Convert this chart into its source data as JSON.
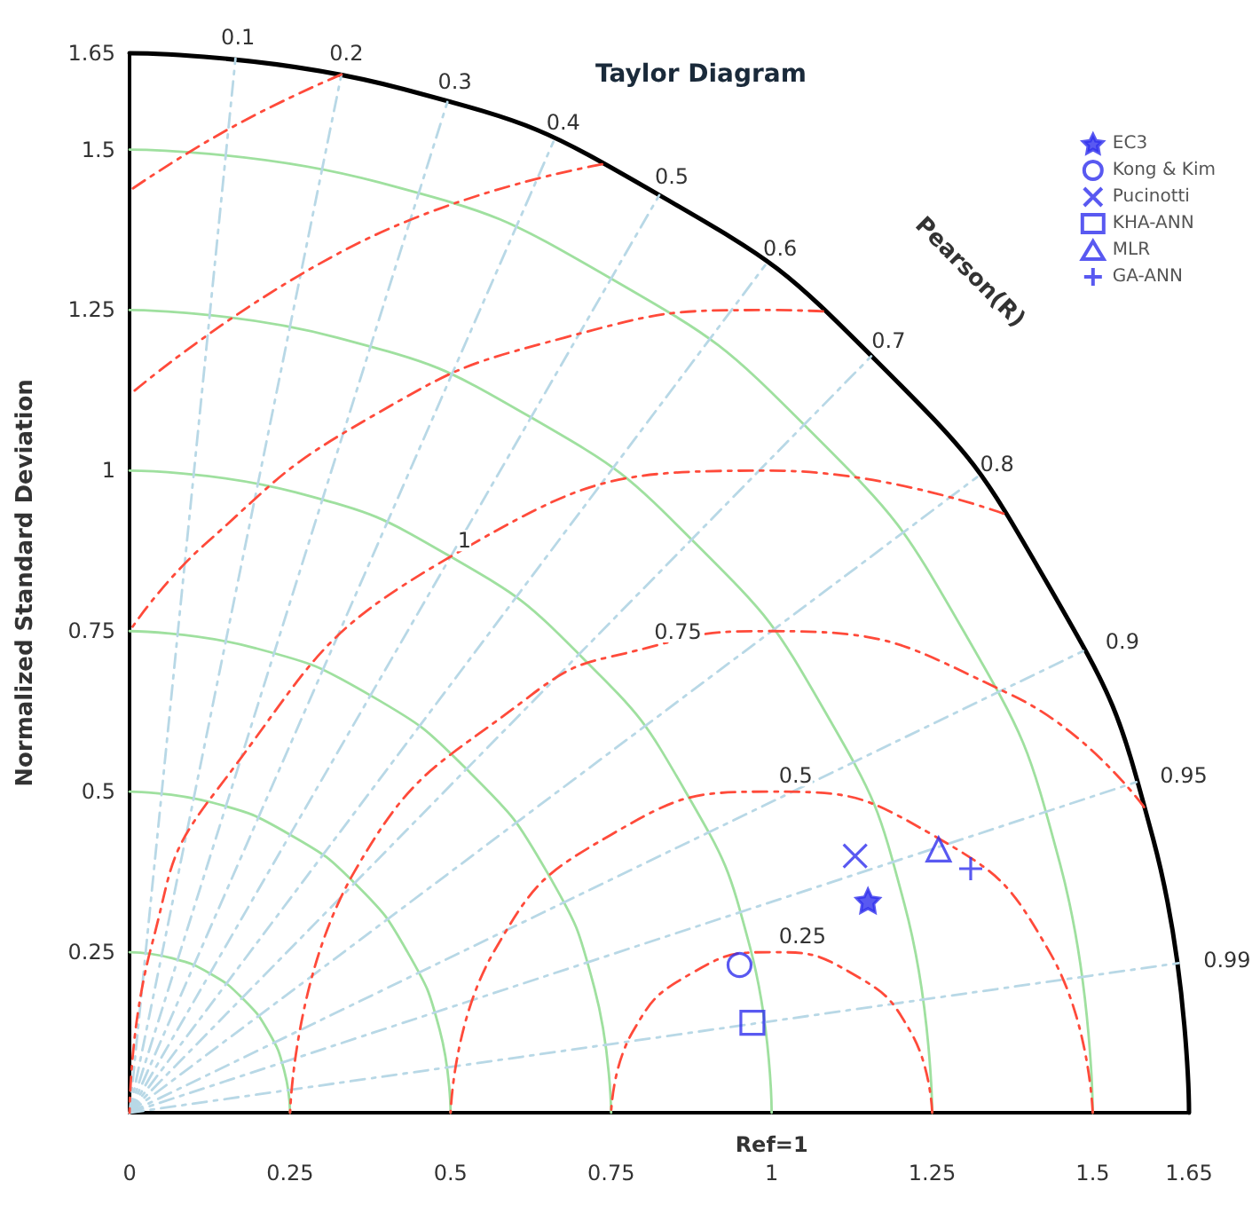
{
  "chart_data": {
    "type": "scatter",
    "title": "Taylor Diagram",
    "ylabel": "Normalized Standard Deviation",
    "xlim": [
      0,
      1.65
    ],
    "xticks": [
      0,
      0.25,
      0.5,
      0.75,
      1,
      1.25,
      1.5,
      1.65
    ],
    "ylim": [
      0,
      1.65
    ],
    "yticks": [
      0.25,
      0.5,
      0.75,
      1,
      1.25,
      1.5,
      1.65
    ],
    "legend": "top right",
    "annotations": [
      "Pearson(R)",
      {
        "text": "Ref=1",
        "x": 1,
        "y": 0
      },
      {
        "text": "0.1",
        "x": 0.165,
        "y": 1.642
      },
      {
        "text": "0.2",
        "x": 0.33,
        "y": 1.617
      },
      {
        "text": "0.3",
        "x": 0.495,
        "y": 1.574
      },
      {
        "text": "0.4",
        "x": 0.66,
        "y": 1.512
      },
      {
        "text": "0.5",
        "x": 0.825,
        "y": 1.429
      },
      {
        "text": "0.6",
        "x": 0.99,
        "y": 1.32
      },
      {
        "text": "0.7",
        "x": 1.155,
        "y": 1.178
      },
      {
        "text": "0.8",
        "x": 1.32,
        "y": 0.99
      },
      {
        "text": "0.9",
        "x": 1.485,
        "y": 0.719
      },
      {
        "text": "0.95",
        "x": 1.568,
        "y": 0.515
      },
      {
        "text": "0.99",
        "x": 1.634,
        "y": 0.233
      },
      {
        "text": "0.25",
        "x": 1,
        "y": 0.25
      },
      {
        "text": "0.5",
        "x": 1,
        "y": 0.5
      },
      {
        "text": "0.75",
        "x": 0.806,
        "y": 0.724
      },
      {
        "text": "1",
        "x": 0.5,
        "y": 0.866
      }
    ],
    "series": [
      {
        "type": "line",
        "color": "#9fe09f",
        "marker": "none",
        "line_style": "solid",
        "x": [
          0.25,
          0.241,
          0.217,
          0.177,
          0.125,
          0.065,
          0
        ],
        "values": [
          0,
          0.065,
          0.125,
          0.177,
          0.217,
          0.241,
          0.25
        ]
      },
      {
        "type": "line",
        "color": "#9fe09f",
        "marker": "none",
        "line_style": "solid",
        "x": [
          0.5,
          0.483,
          0.433,
          0.354,
          0.25,
          0.129,
          0
        ],
        "values": [
          0,
          0.129,
          0.25,
          0.354,
          0.433,
          0.483,
          0.5
        ]
      },
      {
        "type": "line",
        "color": "#9fe09f",
        "marker": "none",
        "line_style": "solid",
        "x": [
          0.75,
          0.724,
          0.65,
          0.53,
          0.375,
          0.194,
          0
        ],
        "values": [
          0,
          0.194,
          0.375,
          0.53,
          0.65,
          0.724,
          0.75
        ]
      },
      {
        "type": "line",
        "color": "#9fe09f",
        "marker": "none",
        "line_style": "solid",
        "x": [
          1,
          0.966,
          0.866,
          0.707,
          0.5,
          0.259,
          0
        ],
        "values": [
          0,
          0.259,
          0.5,
          0.707,
          0.866,
          0.966,
          1
        ]
      },
      {
        "type": "line",
        "color": "#9fe09f",
        "marker": "none",
        "line_style": "solid",
        "x": [
          1.25,
          1.207,
          1.083,
          0.884,
          0.625,
          0.324,
          0
        ],
        "values": [
          0,
          0.324,
          0.625,
          0.884,
          1.083,
          1.207,
          1.25
        ]
      },
      {
        "type": "line",
        "color": "#9fe09f",
        "marker": "none",
        "line_style": "solid",
        "x": [
          1.5,
          1.449,
          1.299,
          1.061,
          0.75,
          0.388,
          0
        ],
        "values": [
          0,
          0.388,
          0.75,
          1.061,
          1.299,
          1.449,
          1.5
        ]
      },
      {
        "type": "line",
        "color": "#000000",
        "marker": "none",
        "line_style": "solid",
        "x": [
          1.65,
          1.594,
          1.429,
          1.167,
          0.825,
          0.427,
          0
        ],
        "values": [
          0,
          0.427,
          0.825,
          1.167,
          1.429,
          1.594,
          1.65
        ]
      },
      {
        "type": "line",
        "color": "#b8d8e6",
        "marker": "none",
        "line_style": "dashed",
        "x": [
          0,
          0.165
        ],
        "values": [
          0,
          1.642
        ]
      },
      {
        "type": "line",
        "color": "#b8d8e6",
        "marker": "none",
        "line_style": "dashed",
        "x": [
          0,
          0.33
        ],
        "values": [
          0,
          1.617
        ]
      },
      {
        "type": "line",
        "color": "#b8d8e6",
        "marker": "none",
        "line_style": "dashed",
        "x": [
          0,
          0.495
        ],
        "values": [
          0,
          1.574
        ]
      },
      {
        "type": "line",
        "color": "#b8d8e6",
        "marker": "none",
        "line_style": "dashed",
        "x": [
          0,
          0.66
        ],
        "values": [
          0,
          1.512
        ]
      },
      {
        "type": "line",
        "color": "#b8d8e6",
        "marker": "none",
        "line_style": "dashed",
        "x": [
          0,
          0.825
        ],
        "values": [
          0,
          1.429
        ]
      },
      {
        "type": "line",
        "color": "#b8d8e6",
        "marker": "none",
        "line_style": "dashed",
        "x": [
          0,
          0.99
        ],
        "values": [
          0,
          1.32
        ]
      },
      {
        "type": "line",
        "color": "#b8d8e6",
        "marker": "none",
        "line_style": "dashed",
        "x": [
          0,
          1.155
        ],
        "values": [
          0,
          1.178
        ]
      },
      {
        "type": "line",
        "color": "#b8d8e6",
        "marker": "none",
        "line_style": "dashed",
        "x": [
          0,
          1.32
        ],
        "values": [
          0,
          0.99
        ]
      },
      {
        "type": "line",
        "color": "#b8d8e6",
        "marker": "none",
        "line_style": "dashed",
        "x": [
          0,
          1.485
        ],
        "values": [
          0,
          0.719
        ]
      },
      {
        "type": "line",
        "color": "#b8d8e6",
        "marker": "none",
        "line_style": "dashed",
        "x": [
          0,
          1.568
        ],
        "values": [
          0,
          0.515
        ]
      },
      {
        "type": "line",
        "color": "#b8d8e6",
        "marker": "none",
        "line_style": "dashed",
        "x": [
          0,
          1.634
        ],
        "values": [
          0,
          0.233
        ]
      },
      {
        "type": "line",
        "color": "#ff4a3a",
        "marker": "none",
        "line_style": "dashed",
        "x": [
          1.25,
          1.217,
          1.125,
          1,
          0.875,
          0.783,
          0.75
        ],
        "values": [
          0,
          0.125,
          0.217,
          0.25,
          0.217,
          0.125,
          0
        ]
      },
      {
        "type": "line",
        "color": "#ff4a3a",
        "marker": "none",
        "line_style": "dashed",
        "x": [
          1.5,
          1.433,
          1.25,
          1,
          0.75,
          0.567,
          0.5
        ],
        "values": [
          0,
          0.25,
          0.433,
          0.5,
          0.433,
          0.25,
          0
        ]
      },
      {
        "type": "line",
        "color": "#ff4a3a",
        "marker": "none",
        "line_style": "dashed",
        "x": [
          1.58,
          1.375,
          1,
          0.806,
          0.625,
          0.35,
          0.25
        ],
        "values": [
          0.476,
          0.65,
          0.75,
          0.724,
          0.65,
          0.375,
          0
        ]
      },
      {
        "type": "line",
        "color": "#ff4a3a",
        "marker": "none",
        "line_style": "dashed",
        "x": [
          1.361,
          1,
          0.5,
          0.134,
          0.034,
          0
        ],
        "values": [
          0.933,
          1,
          0.866,
          0.5,
          0.259,
          0
        ]
      },
      {
        "type": "line",
        "color": "#ff4a3a",
        "marker": "none",
        "line_style": "dashed",
        "x": [
          1.08,
          1,
          0.677,
          0.375,
          0.116,
          0
        ],
        "values": [
          1.248,
          1.25,
          1.207,
          1.083,
          0.884,
          0.75
        ]
      },
      {
        "type": "line",
        "color": "#ff4a3a",
        "marker": "none",
        "line_style": "dashed",
        "x": [
          0.736,
          0.366,
          0
        ],
        "values": [
          1.477,
          1.359,
          1.118
        ]
      },
      {
        "type": "line",
        "color": "#ff4a3a",
        "marker": "none",
        "line_style": "dashed",
        "x": [
          0.33,
          0.16,
          0
        ],
        "values": [
          1.617,
          1.535,
          1.436
        ]
      },
      {
        "name": "EC3",
        "color": "#2f2fee",
        "marker": "star",
        "x": [
          1.15
        ],
        "values": [
          0.33
        ]
      },
      {
        "name": "Kong & Kim",
        "color": "#2f2fee",
        "marker": "circle",
        "x": [
          0.95
        ],
        "values": [
          0.23
        ]
      },
      {
        "name": "Pucinotti",
        "color": "#2f2fee",
        "marker": "cross",
        "x": [
          1.13
        ],
        "values": [
          0.4
        ]
      },
      {
        "name": "KHA-ANN",
        "color": "#2f2fee",
        "marker": "square",
        "x": [
          0.97
        ],
        "values": [
          0.14
        ]
      },
      {
        "name": "MLR",
        "color": "#2f2fee",
        "marker": "triangle",
        "x": [
          1.26
        ],
        "values": [
          0.41
        ]
      },
      {
        "name": "GA-ANN",
        "color": "#2f2fee",
        "marker": "plus",
        "x": [
          1.31
        ],
        "values": [
          0.38
        ]
      }
    ]
  }
}
